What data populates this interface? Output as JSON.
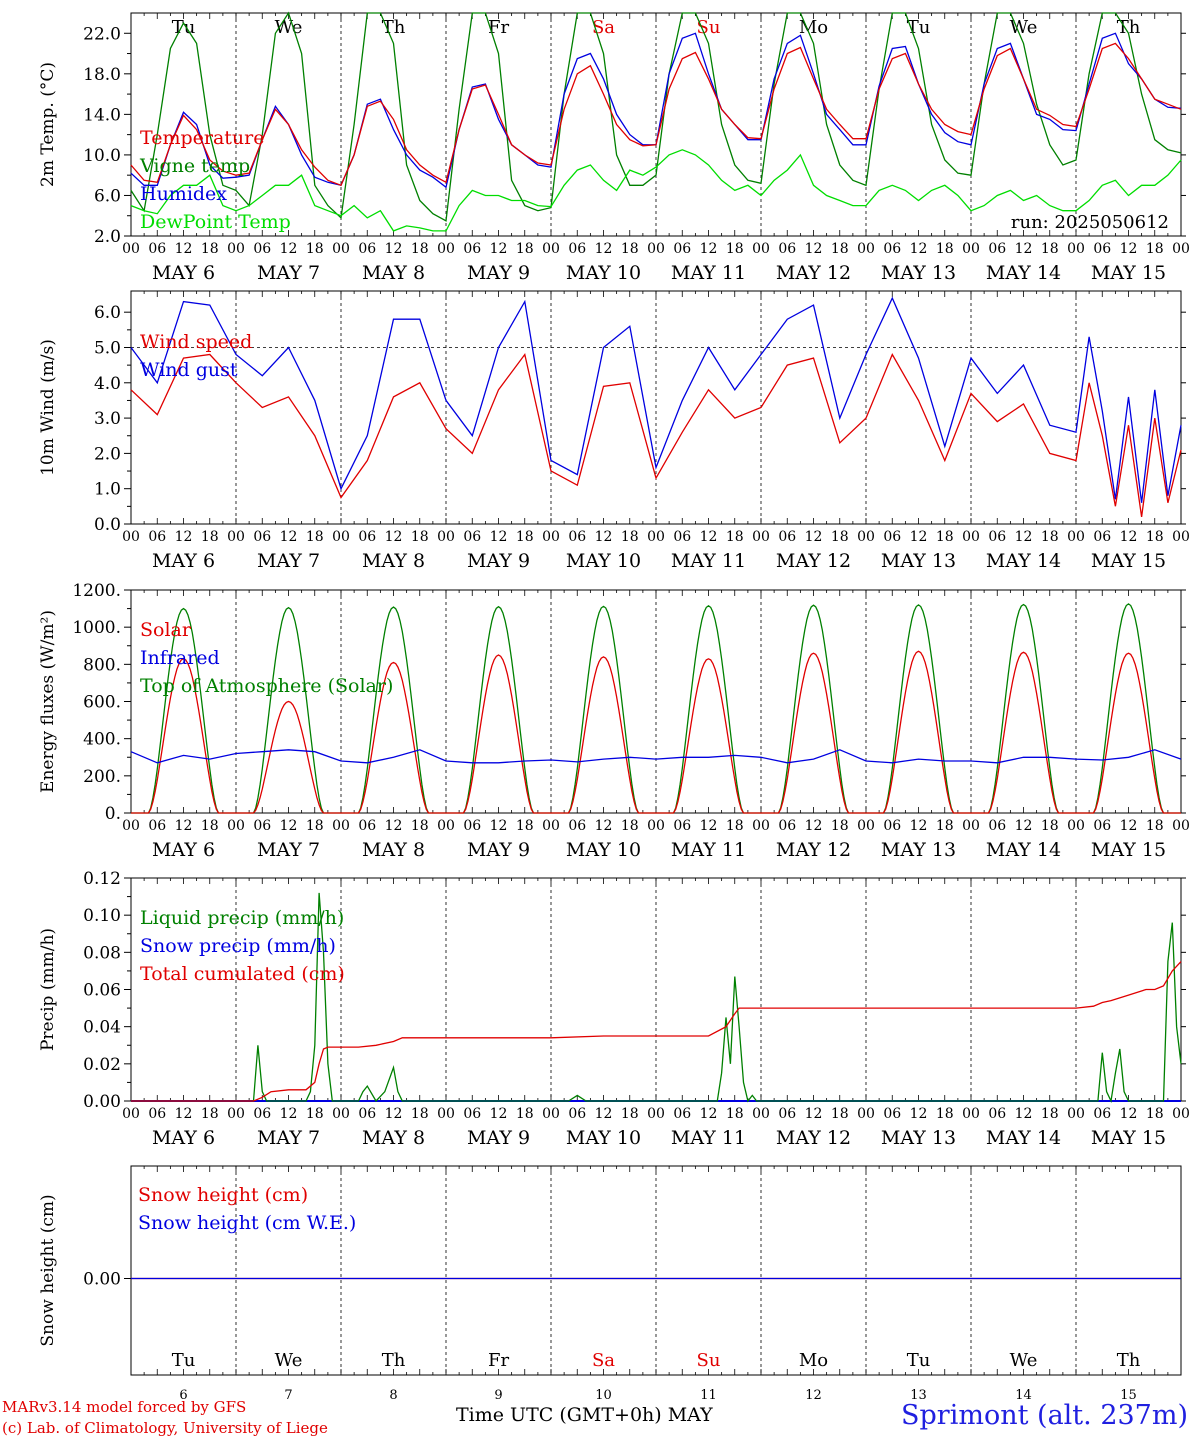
{
  "colors": {
    "red": "#e00000",
    "green": "#008000",
    "blue": "#0000e0",
    "lightgreen": "#00dd00",
    "axis": "#000000"
  },
  "days": [
    {
      "dow": "Tu",
      "date": 6,
      "weekend": false
    },
    {
      "dow": "We",
      "date": 7,
      "weekend": false
    },
    {
      "dow": "Th",
      "date": 8,
      "weekend": false
    },
    {
      "dow": "Fr",
      "date": 9,
      "weekend": false
    },
    {
      "dow": "Sa",
      "date": 10,
      "weekend": true
    },
    {
      "dow": "Su",
      "date": 11,
      "weekend": true
    },
    {
      "dow": "Mo",
      "date": 12,
      "weekend": false
    },
    {
      "dow": "Tu",
      "date": 13,
      "weekend": false
    },
    {
      "dow": "We",
      "date": 14,
      "weekend": false
    },
    {
      "dow": "Th",
      "date": 15,
      "weekend": false
    }
  ],
  "month": "MAY",
  "hour_ticks": [
    "00",
    "06",
    "12",
    "18"
  ],
  "footer": {
    "credit_line1": "MARv3.14 model forced by GFS",
    "credit_line2": "(c) Lab. of Climatology, University of Liege",
    "x_title": "Time UTC (GMT+0h) MAY",
    "station": "Sprimont (alt. 237m)"
  },
  "chart_data": [
    {
      "type": "line",
      "id": "temp",
      "ylabel": "2m Temp. (°C)",
      "ylim": [
        2,
        24
      ],
      "yticks": [
        2.0,
        6.0,
        10.0,
        14.0,
        18.0,
        22.0
      ],
      "ytick_labels": [
        "2.0",
        "6.0",
        "10.0",
        "14.0",
        "18.0",
        "22.0"
      ],
      "run_label": "run: 2025050612",
      "x_hours": [
        0,
        3,
        6,
        9,
        12,
        15,
        18,
        21,
        24,
        27,
        30,
        33,
        36,
        39,
        42,
        45,
        48,
        51,
        54,
        57,
        60,
        63,
        66,
        69,
        72,
        75,
        78,
        81,
        84,
        87,
        90,
        93,
        96,
        99,
        102,
        105,
        108,
        111,
        114,
        117,
        120,
        123,
        126,
        129,
        132,
        135,
        138,
        141,
        144,
        147,
        150,
        153,
        156,
        159,
        162,
        165,
        168,
        171,
        174,
        177,
        180,
        183,
        186,
        189,
        192,
        195,
        198,
        201,
        204,
        207,
        210,
        213,
        216,
        219,
        222,
        225,
        228,
        231,
        234,
        237,
        240
      ],
      "series": [
        {
          "name": "Temperature",
          "color": "red",
          "values": [
            9.0,
            7.5,
            7.3,
            11.0,
            13.9,
            12.5,
            9.5,
            8.4,
            8.0,
            8.2,
            11.5,
            14.5,
            13.0,
            10.5,
            8.8,
            7.5,
            7.0,
            10.0,
            14.8,
            15.3,
            13.5,
            10.5,
            9.0,
            8.0,
            7.3,
            12.5,
            16.5,
            16.9,
            14.0,
            11.0,
            10.0,
            9.2,
            9.0,
            14.5,
            18.0,
            18.8,
            16.0,
            13.0,
            11.5,
            10.9,
            11.0,
            16.5,
            19.5,
            20.1,
            17.5,
            14.5,
            13.0,
            11.7,
            11.6,
            16.5,
            20.0,
            20.6,
            17.5,
            14.5,
            13.0,
            11.6,
            11.6,
            16.5,
            19.5,
            20.0,
            17.0,
            14.5,
            13.0,
            12.3,
            12.0,
            16.5,
            19.8,
            20.5,
            17.5,
            14.5,
            13.9,
            13.0,
            12.8,
            16.5,
            20.5,
            21.0,
            19.5,
            17.5,
            15.5,
            15.0,
            14.5
          ]
        },
        {
          "name": "Vigne temp",
          "color": "green",
          "values": [
            6.5,
            4.5,
            12.0,
            20.5,
            23.0,
            21.0,
            12.0,
            7.0,
            6.5,
            5.0,
            12.0,
            22.0,
            24.0,
            20.0,
            7.0,
            5.0,
            3.8,
            13.0,
            24.0,
            26.0,
            21.0,
            9.0,
            5.5,
            4.2,
            3.5,
            14.5,
            25.0,
            27.0,
            20.0,
            7.5,
            5.0,
            4.5,
            4.8,
            16.0,
            26.5,
            27.0,
            20.0,
            10.0,
            7.0,
            7.0,
            8.0,
            18.0,
            27.0,
            27.5,
            21.0,
            13.0,
            9.0,
            7.5,
            7.2,
            17.0,
            26.5,
            27.0,
            21.0,
            13.0,
            9.0,
            7.5,
            7.0,
            16.5,
            25.5,
            26.0,
            20.5,
            13.0,
            9.5,
            8.2,
            8.0,
            17.0,
            25.0,
            26.0,
            21.0,
            15.0,
            11.0,
            9.0,
            9.5,
            18.0,
            25.5,
            26.5,
            22.0,
            16.0,
            11.5,
            10.5,
            10.2
          ]
        },
        {
          "name": "Humidex",
          "color": "blue",
          "values": [
            8.2,
            7.0,
            7.0,
            11.0,
            14.2,
            13.0,
            9.0,
            7.7,
            7.8,
            8.0,
            11.5,
            14.8,
            13.0,
            10.0,
            7.8,
            7.3,
            7.0,
            10.0,
            15.0,
            15.5,
            12.5,
            10.0,
            8.5,
            7.8,
            6.8,
            12.5,
            16.7,
            17.0,
            13.5,
            11.0,
            10.0,
            9.0,
            8.8,
            16.0,
            19.5,
            20.0,
            17.5,
            14.0,
            12.0,
            11.0,
            11.0,
            18.0,
            21.5,
            22.0,
            18.0,
            14.5,
            13.0,
            11.5,
            11.5,
            17.5,
            21.0,
            21.8,
            18.0,
            14.0,
            12.5,
            11.0,
            11.0,
            16.8,
            20.5,
            20.7,
            17.0,
            14.0,
            12.2,
            11.3,
            11.0,
            17.0,
            20.5,
            21.0,
            17.5,
            14.0,
            13.5,
            12.5,
            12.4,
            17.0,
            21.5,
            22.0,
            19.0,
            17.5,
            15.5,
            14.7,
            14.6
          ]
        },
        {
          "name": "DewPoint Temp",
          "color": "lightgreen",
          "values": [
            5.0,
            4.5,
            4.2,
            6.0,
            7.0,
            7.0,
            8.0,
            5.0,
            4.5,
            5.0,
            6.0,
            7.0,
            7.0,
            8.0,
            5.0,
            4.5,
            4.0,
            5.0,
            3.8,
            4.5,
            2.5,
            3.0,
            2.8,
            2.5,
            2.5,
            5.0,
            6.5,
            6.0,
            6.0,
            5.5,
            5.5,
            5.0,
            4.9,
            7.0,
            8.5,
            9.0,
            7.5,
            6.5,
            8.5,
            8.0,
            8.8,
            10.0,
            10.5,
            10.0,
            9.0,
            7.5,
            6.5,
            7.0,
            6.0,
            7.5,
            8.5,
            10.0,
            7.0,
            6.0,
            5.5,
            5.0,
            5.0,
            6.5,
            7.0,
            6.5,
            5.5,
            6.5,
            7.0,
            6.0,
            4.5,
            5.0,
            6.0,
            6.5,
            5.5,
            6.0,
            5.0,
            4.5,
            4.5,
            5.5,
            7.0,
            7.5,
            6.0,
            7.0,
            7.0,
            8.0,
            9.5
          ]
        }
      ]
    },
    {
      "type": "line",
      "id": "wind",
      "ylabel": "10m Wind (m/s)",
      "ylim": [
        0,
        6.6
      ],
      "yticks": [
        0,
        1,
        2,
        3,
        4,
        5,
        6
      ],
      "ytick_labels": [
        "0.0",
        "1.0",
        "2.0",
        "3.0",
        "4.0",
        "5.0",
        "6.0"
      ],
      "reference_line": 5.0,
      "x_hours": [
        0,
        6,
        12,
        18,
        24,
        30,
        36,
        42,
        48,
        54,
        60,
        66,
        72,
        78,
        84,
        90,
        96,
        102,
        108,
        114,
        120,
        126,
        132,
        138,
        144,
        150,
        156,
        162,
        168,
        174,
        180,
        186,
        192,
        198,
        204,
        210,
        216,
        219,
        222,
        225,
        228,
        231,
        234,
        237,
        240
      ],
      "series": [
        {
          "name": "Wind speed",
          "color": "red",
          "values": [
            3.8,
            3.1,
            4.7,
            4.8,
            4.0,
            3.3,
            3.6,
            2.5,
            0.75,
            1.8,
            3.6,
            4.0,
            2.7,
            2.0,
            3.8,
            4.8,
            1.5,
            1.1,
            3.9,
            4.0,
            1.3,
            2.6,
            3.8,
            3.0,
            3.3,
            4.5,
            4.7,
            2.3,
            3.0,
            4.8,
            3.5,
            1.8,
            3.7,
            2.9,
            3.4,
            2.0,
            1.8,
            4.0,
            2.5,
            0.5,
            2.8,
            0.2,
            3.0,
            0.6,
            2.1
          ]
        },
        {
          "name": "Wind gust",
          "color": "blue",
          "values": [
            5.0,
            4.0,
            6.3,
            6.2,
            4.8,
            4.2,
            5.0,
            3.5,
            1.0,
            2.5,
            5.8,
            5.8,
            3.5,
            2.5,
            5.0,
            6.3,
            1.8,
            1.4,
            5.0,
            5.6,
            1.6,
            3.5,
            5.0,
            3.8,
            4.8,
            5.8,
            6.2,
            3.0,
            4.8,
            6.4,
            4.7,
            2.2,
            4.7,
            3.7,
            4.5,
            2.8,
            2.6,
            5.3,
            3.2,
            0.7,
            3.6,
            0.6,
            3.8,
            0.8,
            2.8
          ]
        }
      ]
    },
    {
      "type": "line",
      "id": "energy",
      "ylabel": "Energy fluxes (W/m²)",
      "ylim": [
        0,
        1200
      ],
      "yticks": [
        0,
        200,
        400,
        600,
        800,
        1000,
        1200
      ],
      "ytick_labels": [
        "0.",
        "200.",
        "400.",
        "600.",
        "800.",
        "1000.",
        "1200."
      ],
      "solar_peaks": [
        830,
        600,
        810,
        850,
        840,
        830,
        860,
        870,
        865,
        860
      ],
      "toa_peaks": [
        1100,
        1105,
        1108,
        1110,
        1112,
        1115,
        1118,
        1120,
        1122,
        1125
      ],
      "daylight_hours": [
        4,
        20
      ],
      "series": [
        {
          "name": "Solar",
          "color": "red"
        },
        {
          "name": "Infrared",
          "color": "blue",
          "x_hours": [
            0,
            6,
            12,
            18,
            24,
            30,
            36,
            42,
            48,
            54,
            60,
            66,
            72,
            78,
            84,
            90,
            96,
            102,
            108,
            114,
            120,
            126,
            132,
            138,
            144,
            150,
            156,
            162,
            168,
            174,
            180,
            186,
            192,
            198,
            204,
            210,
            216,
            222,
            228,
            234,
            240
          ],
          "values": [
            330,
            270,
            310,
            290,
            320,
            330,
            340,
            330,
            280,
            270,
            300,
            340,
            280,
            270,
            270,
            280,
            285,
            275,
            290,
            300,
            290,
            300,
            300,
            310,
            300,
            270,
            290,
            340,
            280,
            270,
            290,
            280,
            280,
            270,
            300,
            300,
            290,
            285,
            300,
            340,
            290
          ]
        },
        {
          "name": "Top of Atmosphere (Solar)",
          "color": "green"
        }
      ]
    },
    {
      "type": "line",
      "id": "precip",
      "ylabel": "Precip (mm/h)",
      "ylim": [
        0,
        0.12
      ],
      "yticks": [
        0,
        0.02,
        0.04,
        0.06,
        0.08,
        0.1,
        0.12
      ],
      "ytick_labels": [
        "0.00",
        "0.02",
        "0.04",
        "0.06",
        "0.08",
        "0.10",
        "0.12"
      ],
      "series": [
        {
          "name": "Liquid precip (mm/h)",
          "color": "green",
          "x_hours": [
            0,
            28,
            29,
            30,
            31,
            32,
            40,
            41,
            42,
            43,
            44,
            45,
            46,
            47,
            48,
            52,
            53,
            54,
            56,
            58,
            60,
            61,
            62,
            64,
            100,
            102,
            104,
            132,
            134,
            135,
            136,
            137,
            138,
            139,
            140,
            141,
            142,
            143,
            144,
            216,
            221,
            222,
            223,
            224,
            225,
            226,
            227,
            228,
            230,
            232,
            236,
            237,
            238,
            239,
            240
          ],
          "values": [
            0,
            0,
            0.03,
            0.005,
            0,
            0,
            0,
            0.005,
            0.03,
            0.112,
            0.08,
            0.02,
            0,
            0,
            0,
            0,
            0.005,
            0.008,
            0,
            0.005,
            0.018,
            0.005,
            0,
            0,
            0,
            0.003,
            0,
            0,
            0,
            0.015,
            0.045,
            0.02,
            0.067,
            0.04,
            0.01,
            0,
            0.003,
            0,
            0,
            0,
            0,
            0.026,
            0.005,
            0,
            0.015,
            0.028,
            0.005,
            0,
            0,
            0,
            0,
            0.075,
            0.096,
            0.04,
            0.02
          ]
        },
        {
          "name": "Snow precip (mm/h)",
          "color": "blue",
          "x_hours": [
            0,
            240
          ],
          "values": [
            0,
            0
          ]
        },
        {
          "name": "Total cumulated (cm)",
          "color": "red",
          "x_hours": [
            0,
            28,
            30,
            32,
            36,
            40,
            42,
            43,
            44,
            45,
            46,
            48,
            52,
            56,
            60,
            62,
            64,
            96,
            108,
            132,
            136,
            138,
            139,
            140,
            144,
            216,
            220,
            222,
            224,
            228,
            232,
            234,
            236,
            238,
            240
          ],
          "values": [
            0,
            0,
            0.002,
            0.005,
            0.006,
            0.006,
            0.01,
            0.02,
            0.028,
            0.029,
            0.029,
            0.029,
            0.029,
            0.03,
            0.032,
            0.034,
            0.034,
            0.034,
            0.035,
            0.035,
            0.04,
            0.047,
            0.05,
            0.05,
            0.05,
            0.05,
            0.051,
            0.053,
            0.054,
            0.057,
            0.06,
            0.06,
            0.062,
            0.07,
            0.075
          ]
        }
      ]
    },
    {
      "type": "line",
      "id": "snow",
      "ylabel": "Snow height (cm)",
      "ytick_labels": [
        "0.00"
      ],
      "series": [
        {
          "name": "Snow height (cm)",
          "color": "red",
          "x_hours": [
            0,
            240
          ],
          "values": [
            0,
            0
          ]
        },
        {
          "name": "Snow height (cm W.E.)",
          "color": "blue",
          "x_hours": [
            0,
            240
          ],
          "values": [
            0,
            0
          ]
        }
      ]
    }
  ]
}
